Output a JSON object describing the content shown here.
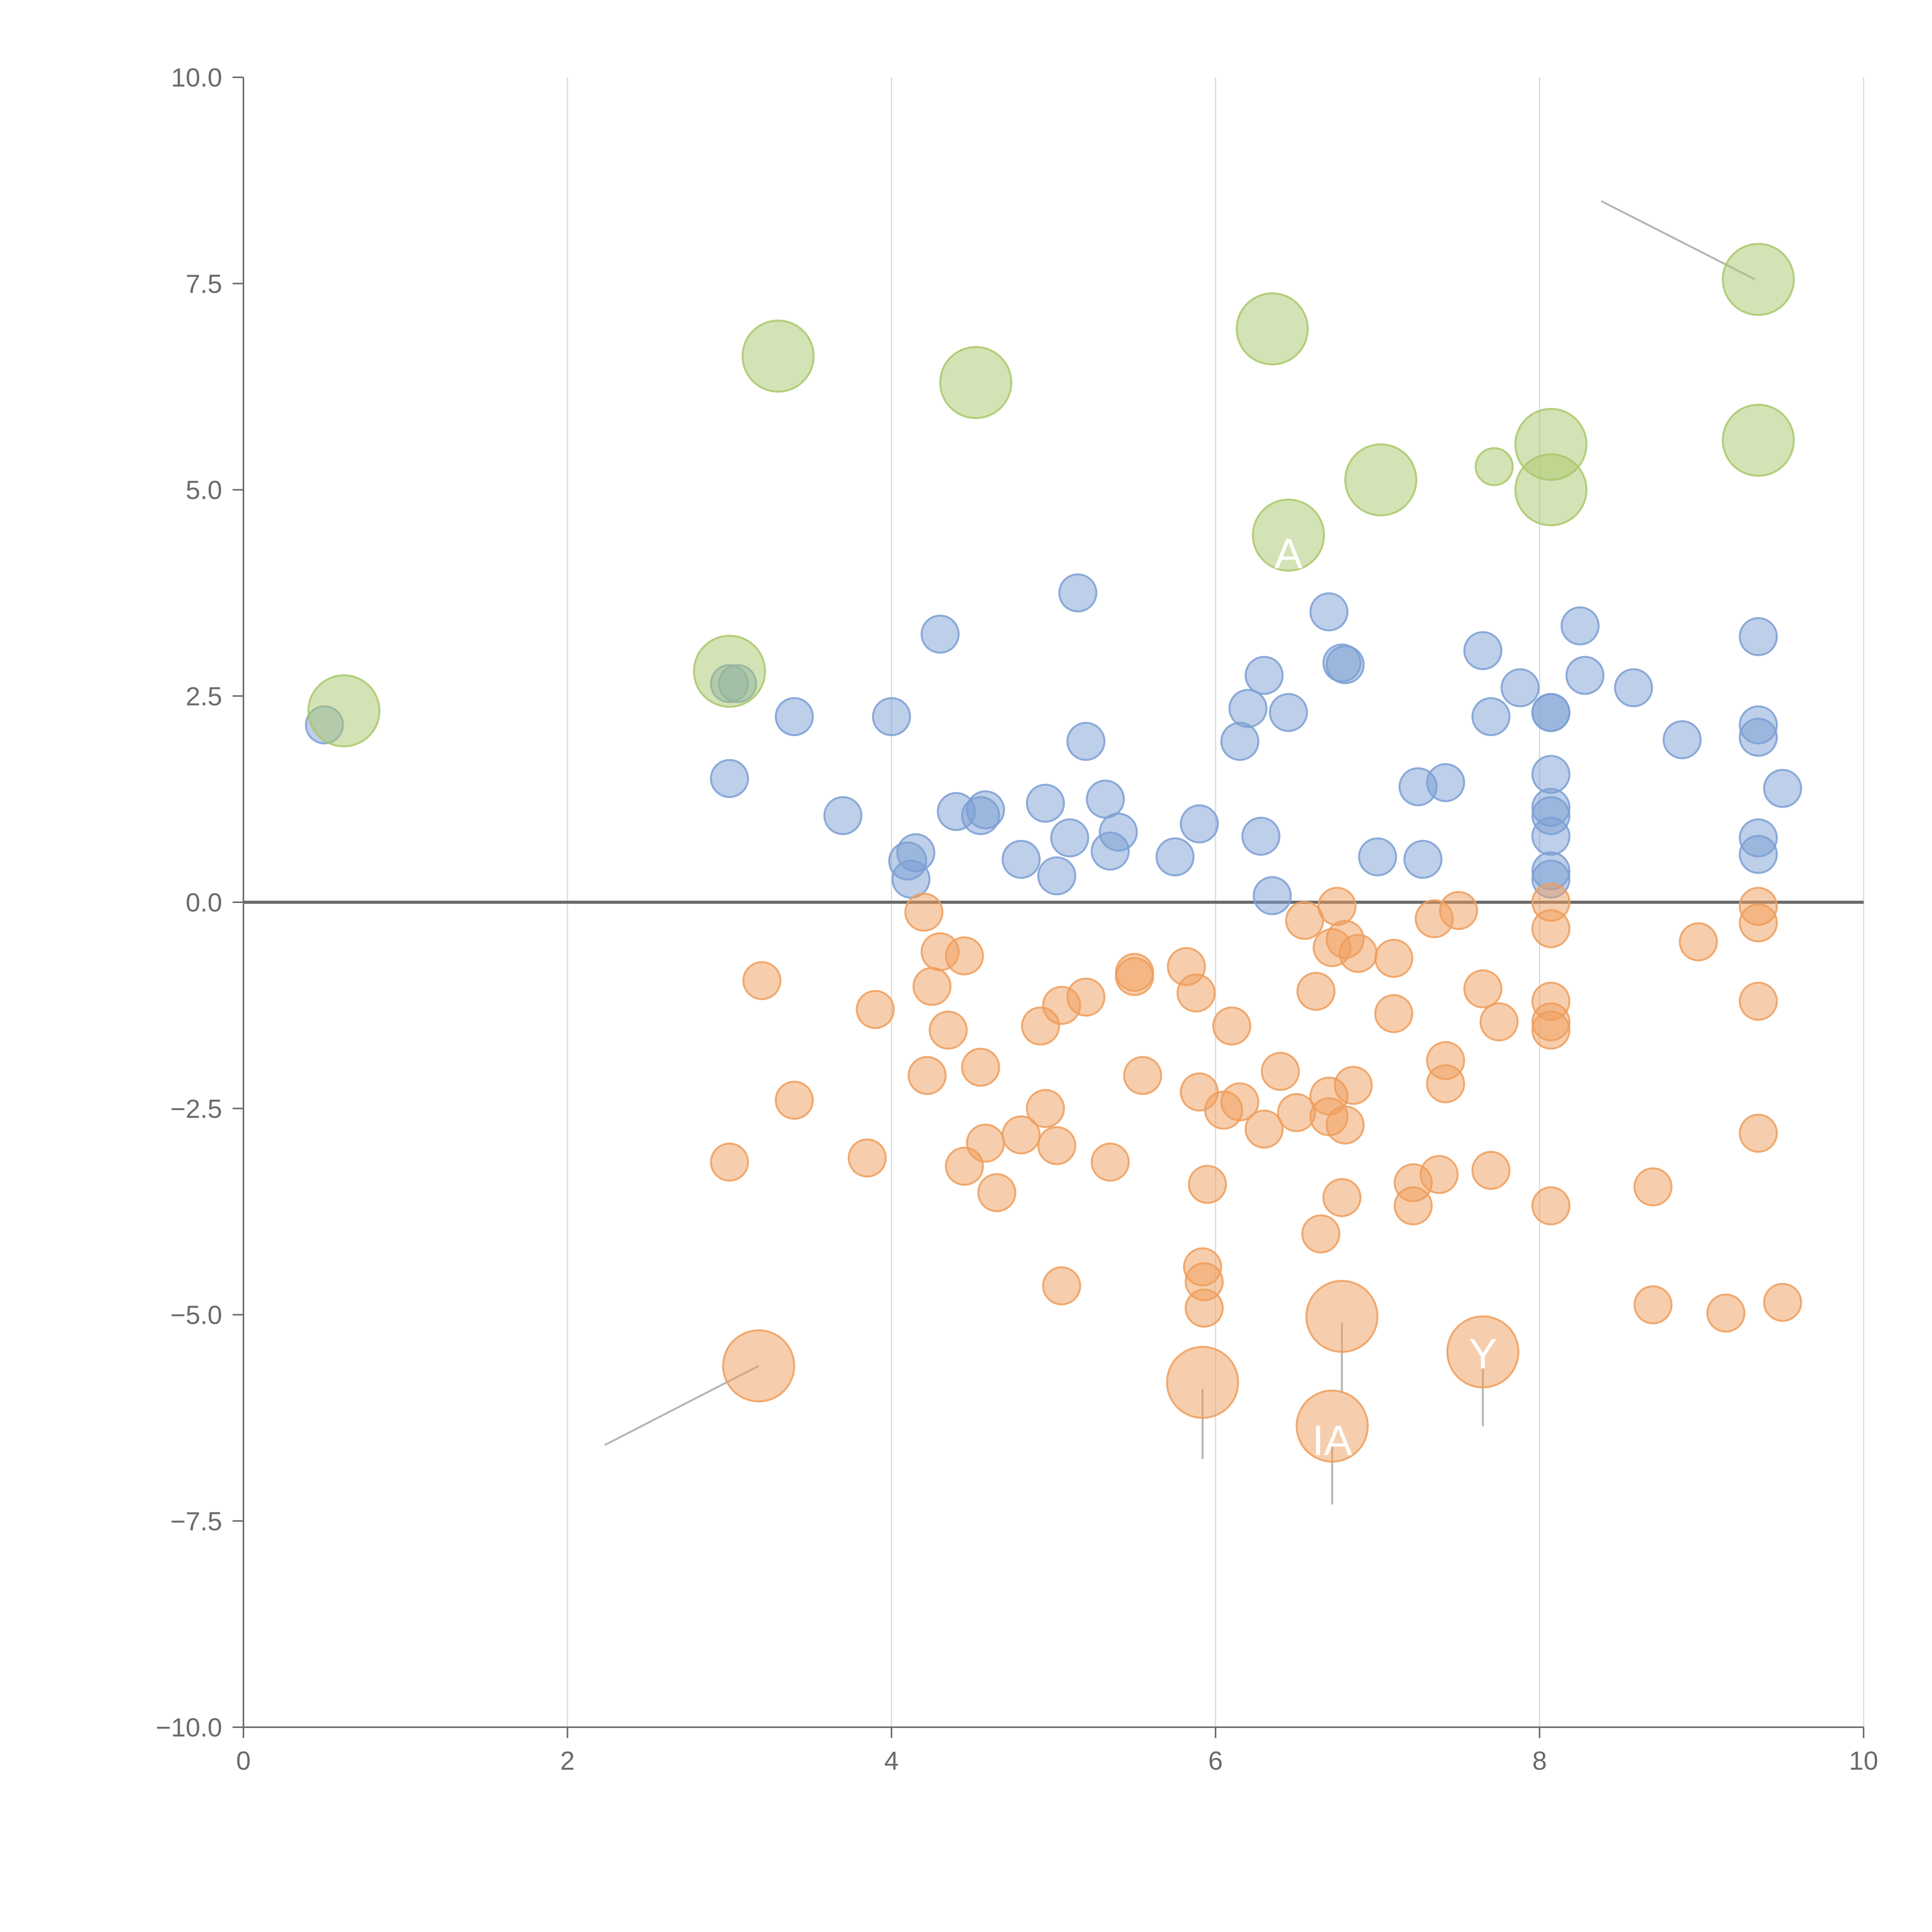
{
  "chart_data": {
    "type": "scatter",
    "title": "",
    "xlabel": "",
    "ylabel": "",
    "xlim": [
      0,
      10
    ],
    "ylim": [
      -10,
      10
    ],
    "x_ticks": [
      0,
      2,
      4,
      6,
      8,
      10
    ],
    "x_tick_labels": [
      "0",
      "2",
      "4",
      "6",
      "8",
      "10"
    ],
    "y_ticks": [
      10,
      7.5,
      5,
      2.5,
      0,
      -2.5,
      -5,
      -7.5,
      -10
    ],
    "y_tick_labels": [
      "10.0",
      "7.5",
      "5.0",
      "2.5",
      "0.0",
      "−2.5",
      "−5.0",
      "−7.5",
      "−10.0"
    ],
    "grid": "vertical",
    "reference_line_y": 0,
    "legend": "none",
    "colors": {
      "positive": "#7b9fd4",
      "negative": "#ef9d5c",
      "highlight": "#a9c86b",
      "axis": "#6b6b6b",
      "grid": "#d9d9d9",
      "leader": "#b5b5b5"
    },
    "series": [
      {
        "name": "positive",
        "color": "#7b9fd4",
        "points": [
          [
            0.5,
            2.15
          ],
          [
            3.0,
            2.65
          ],
          [
            3.05,
            2.65
          ],
          [
            3.0,
            1.5
          ],
          [
            3.4,
            2.25
          ],
          [
            3.7,
            1.05
          ],
          [
            4.0,
            2.25
          ],
          [
            4.1,
            0.5
          ],
          [
            4.12,
            0.28
          ],
          [
            4.15,
            0.6
          ],
          [
            4.3,
            3.25
          ],
          [
            4.4,
            1.1
          ],
          [
            4.55,
            1.05
          ],
          [
            4.58,
            1.12
          ],
          [
            4.8,
            0.52
          ],
          [
            4.95,
            1.2
          ],
          [
            5.02,
            0.32
          ],
          [
            5.1,
            0.78
          ],
          [
            5.15,
            3.75
          ],
          [
            5.2,
            1.95
          ],
          [
            5.32,
            1.25
          ],
          [
            5.35,
            0.62
          ],
          [
            5.4,
            0.85
          ],
          [
            5.75,
            0.55
          ],
          [
            5.9,
            0.95
          ],
          [
            6.15,
            1.95
          ],
          [
            6.2,
            2.35
          ],
          [
            6.28,
            0.8
          ],
          [
            6.3,
            2.75
          ],
          [
            6.35,
            0.08
          ],
          [
            6.45,
            2.3
          ],
          [
            6.7,
            3.52
          ],
          [
            6.78,
            2.9
          ],
          [
            6.8,
            2.88
          ],
          [
            7.0,
            0.55
          ],
          [
            7.25,
            1.4
          ],
          [
            7.28,
            0.52
          ],
          [
            7.42,
            1.45
          ],
          [
            7.65,
            3.05
          ],
          [
            7.7,
            2.25
          ],
          [
            7.88,
            2.6
          ],
          [
            8.07,
            2.3
          ],
          [
            8.07,
            2.3
          ],
          [
            8.07,
            1.55
          ],
          [
            8.07,
            1.15
          ],
          [
            8.07,
            1.05
          ],
          [
            8.07,
            0.8
          ],
          [
            8.07,
            0.38
          ],
          [
            8.07,
            0.28
          ],
          [
            8.25,
            3.35
          ],
          [
            8.28,
            2.75
          ],
          [
            8.58,
            2.6
          ],
          [
            8.88,
            1.97
          ],
          [
            9.35,
            3.22
          ],
          [
            9.35,
            2.15
          ],
          [
            9.35,
            2.0
          ],
          [
            9.35,
            0.78
          ],
          [
            9.35,
            0.58
          ],
          [
            9.5,
            1.38
          ]
        ]
      },
      {
        "name": "negative",
        "color": "#ef9d5c",
        "points": [
          [
            3.0,
            -3.15
          ],
          [
            3.2,
            -0.95
          ],
          [
            3.4,
            -2.4
          ],
          [
            3.85,
            -3.1
          ],
          [
            3.9,
            -1.3
          ],
          [
            4.2,
            -0.12
          ],
          [
            4.22,
            -2.1
          ],
          [
            4.25,
            -1.02
          ],
          [
            4.3,
            -0.6
          ],
          [
            4.35,
            -1.55
          ],
          [
            4.45,
            -0.65
          ],
          [
            4.45,
            -3.2
          ],
          [
            4.55,
            -2.0
          ],
          [
            4.58,
            -2.92
          ],
          [
            4.65,
            -3.52
          ],
          [
            4.8,
            -2.82
          ],
          [
            4.92,
            -1.5
          ],
          [
            4.95,
            -2.5
          ],
          [
            5.02,
            -2.95
          ],
          [
            5.05,
            -1.25
          ],
          [
            5.05,
            -4.65
          ],
          [
            5.2,
            -1.15
          ],
          [
            5.35,
            -3.15
          ],
          [
            5.5,
            -0.85
          ],
          [
            5.5,
            -0.9
          ],
          [
            5.55,
            -2.1
          ],
          [
            5.82,
            -0.78
          ],
          [
            5.88,
            -1.1
          ],
          [
            5.9,
            -2.3
          ],
          [
            5.92,
            -4.42
          ],
          [
            5.93,
            -4.6
          ],
          [
            5.93,
            -4.92
          ],
          [
            5.95,
            -3.42
          ],
          [
            6.05,
            -2.52
          ],
          [
            6.1,
            -1.5
          ],
          [
            6.15,
            -2.42
          ],
          [
            6.3,
            -2.75
          ],
          [
            6.4,
            -2.05
          ],
          [
            6.5,
            -2.55
          ],
          [
            6.55,
            -0.22
          ],
          [
            6.62,
            -1.08
          ],
          [
            6.65,
            -4.02
          ],
          [
            6.7,
            -2.35
          ],
          [
            6.7,
            -2.6
          ],
          [
            6.72,
            -0.55
          ],
          [
            6.75,
            -0.05
          ],
          [
            6.78,
            -3.58
          ],
          [
            6.8,
            -0.45
          ],
          [
            6.8,
            -2.7
          ],
          [
            6.85,
            -2.22
          ],
          [
            6.88,
            -0.62
          ],
          [
            7.1,
            -0.68
          ],
          [
            7.1,
            -1.35
          ],
          [
            7.22,
            -3.4
          ],
          [
            7.22,
            -3.68
          ],
          [
            7.35,
            -0.2
          ],
          [
            7.38,
            -3.3
          ],
          [
            7.42,
            -1.92
          ],
          [
            7.42,
            -2.2
          ],
          [
            7.5,
            -0.1
          ],
          [
            7.65,
            -1.05
          ],
          [
            7.7,
            -3.25
          ],
          [
            7.75,
            -1.45
          ],
          [
            8.07,
            0.0
          ],
          [
            8.07,
            -0.32
          ],
          [
            8.07,
            -1.2
          ],
          [
            8.07,
            -1.45
          ],
          [
            8.07,
            -1.55
          ],
          [
            8.07,
            -3.68
          ],
          [
            8.7,
            -3.45
          ],
          [
            8.7,
            -4.88
          ],
          [
            8.98,
            -0.48
          ],
          [
            9.15,
            -4.98
          ],
          [
            9.35,
            -0.05
          ],
          [
            9.35,
            -0.25
          ],
          [
            9.35,
            -1.2
          ],
          [
            9.35,
            -2.8
          ],
          [
            9.5,
            -4.85
          ]
        ]
      },
      {
        "name": "large-negative",
        "color": "#ef9d5c",
        "points": [
          [
            3.18,
            -5.62
          ],
          [
            5.92,
            -5.82
          ],
          [
            6.78,
            -5.02
          ],
          [
            6.72,
            -6.35
          ],
          [
            7.65,
            -5.45
          ]
        ]
      },
      {
        "name": "highlight",
        "color": "#a9c86b",
        "points": [
          [
            0.62,
            2.32
          ],
          [
            3.0,
            2.8
          ],
          [
            3.3,
            6.62
          ],
          [
            4.52,
            6.3
          ],
          [
            6.35,
            6.95
          ],
          [
            6.45,
            4.45
          ],
          [
            7.02,
            5.12
          ],
          [
            7.72,
            5.28
          ],
          [
            8.07,
            5.55
          ],
          [
            8.07,
            5.0
          ],
          [
            9.35,
            7.55
          ],
          [
            9.35,
            5.6
          ]
        ]
      }
    ],
    "annotations": [
      {
        "id": "top-left-label",
        "text": "",
        "x": 4.0,
        "y": 7.4
      },
      {
        "id": "upper-middle-label",
        "text": "",
        "x": 4.0,
        "y": 4.0
      },
      {
        "id": "center-label",
        "text": "A",
        "x": 6.45,
        "y": 4.05
      },
      {
        "id": "y-label",
        "text": "Y",
        "x": 7.65,
        "y": -5.65
      },
      {
        "id": "ia-label",
        "text": "IA",
        "x": 6.72,
        "y": -6.7
      }
    ]
  }
}
